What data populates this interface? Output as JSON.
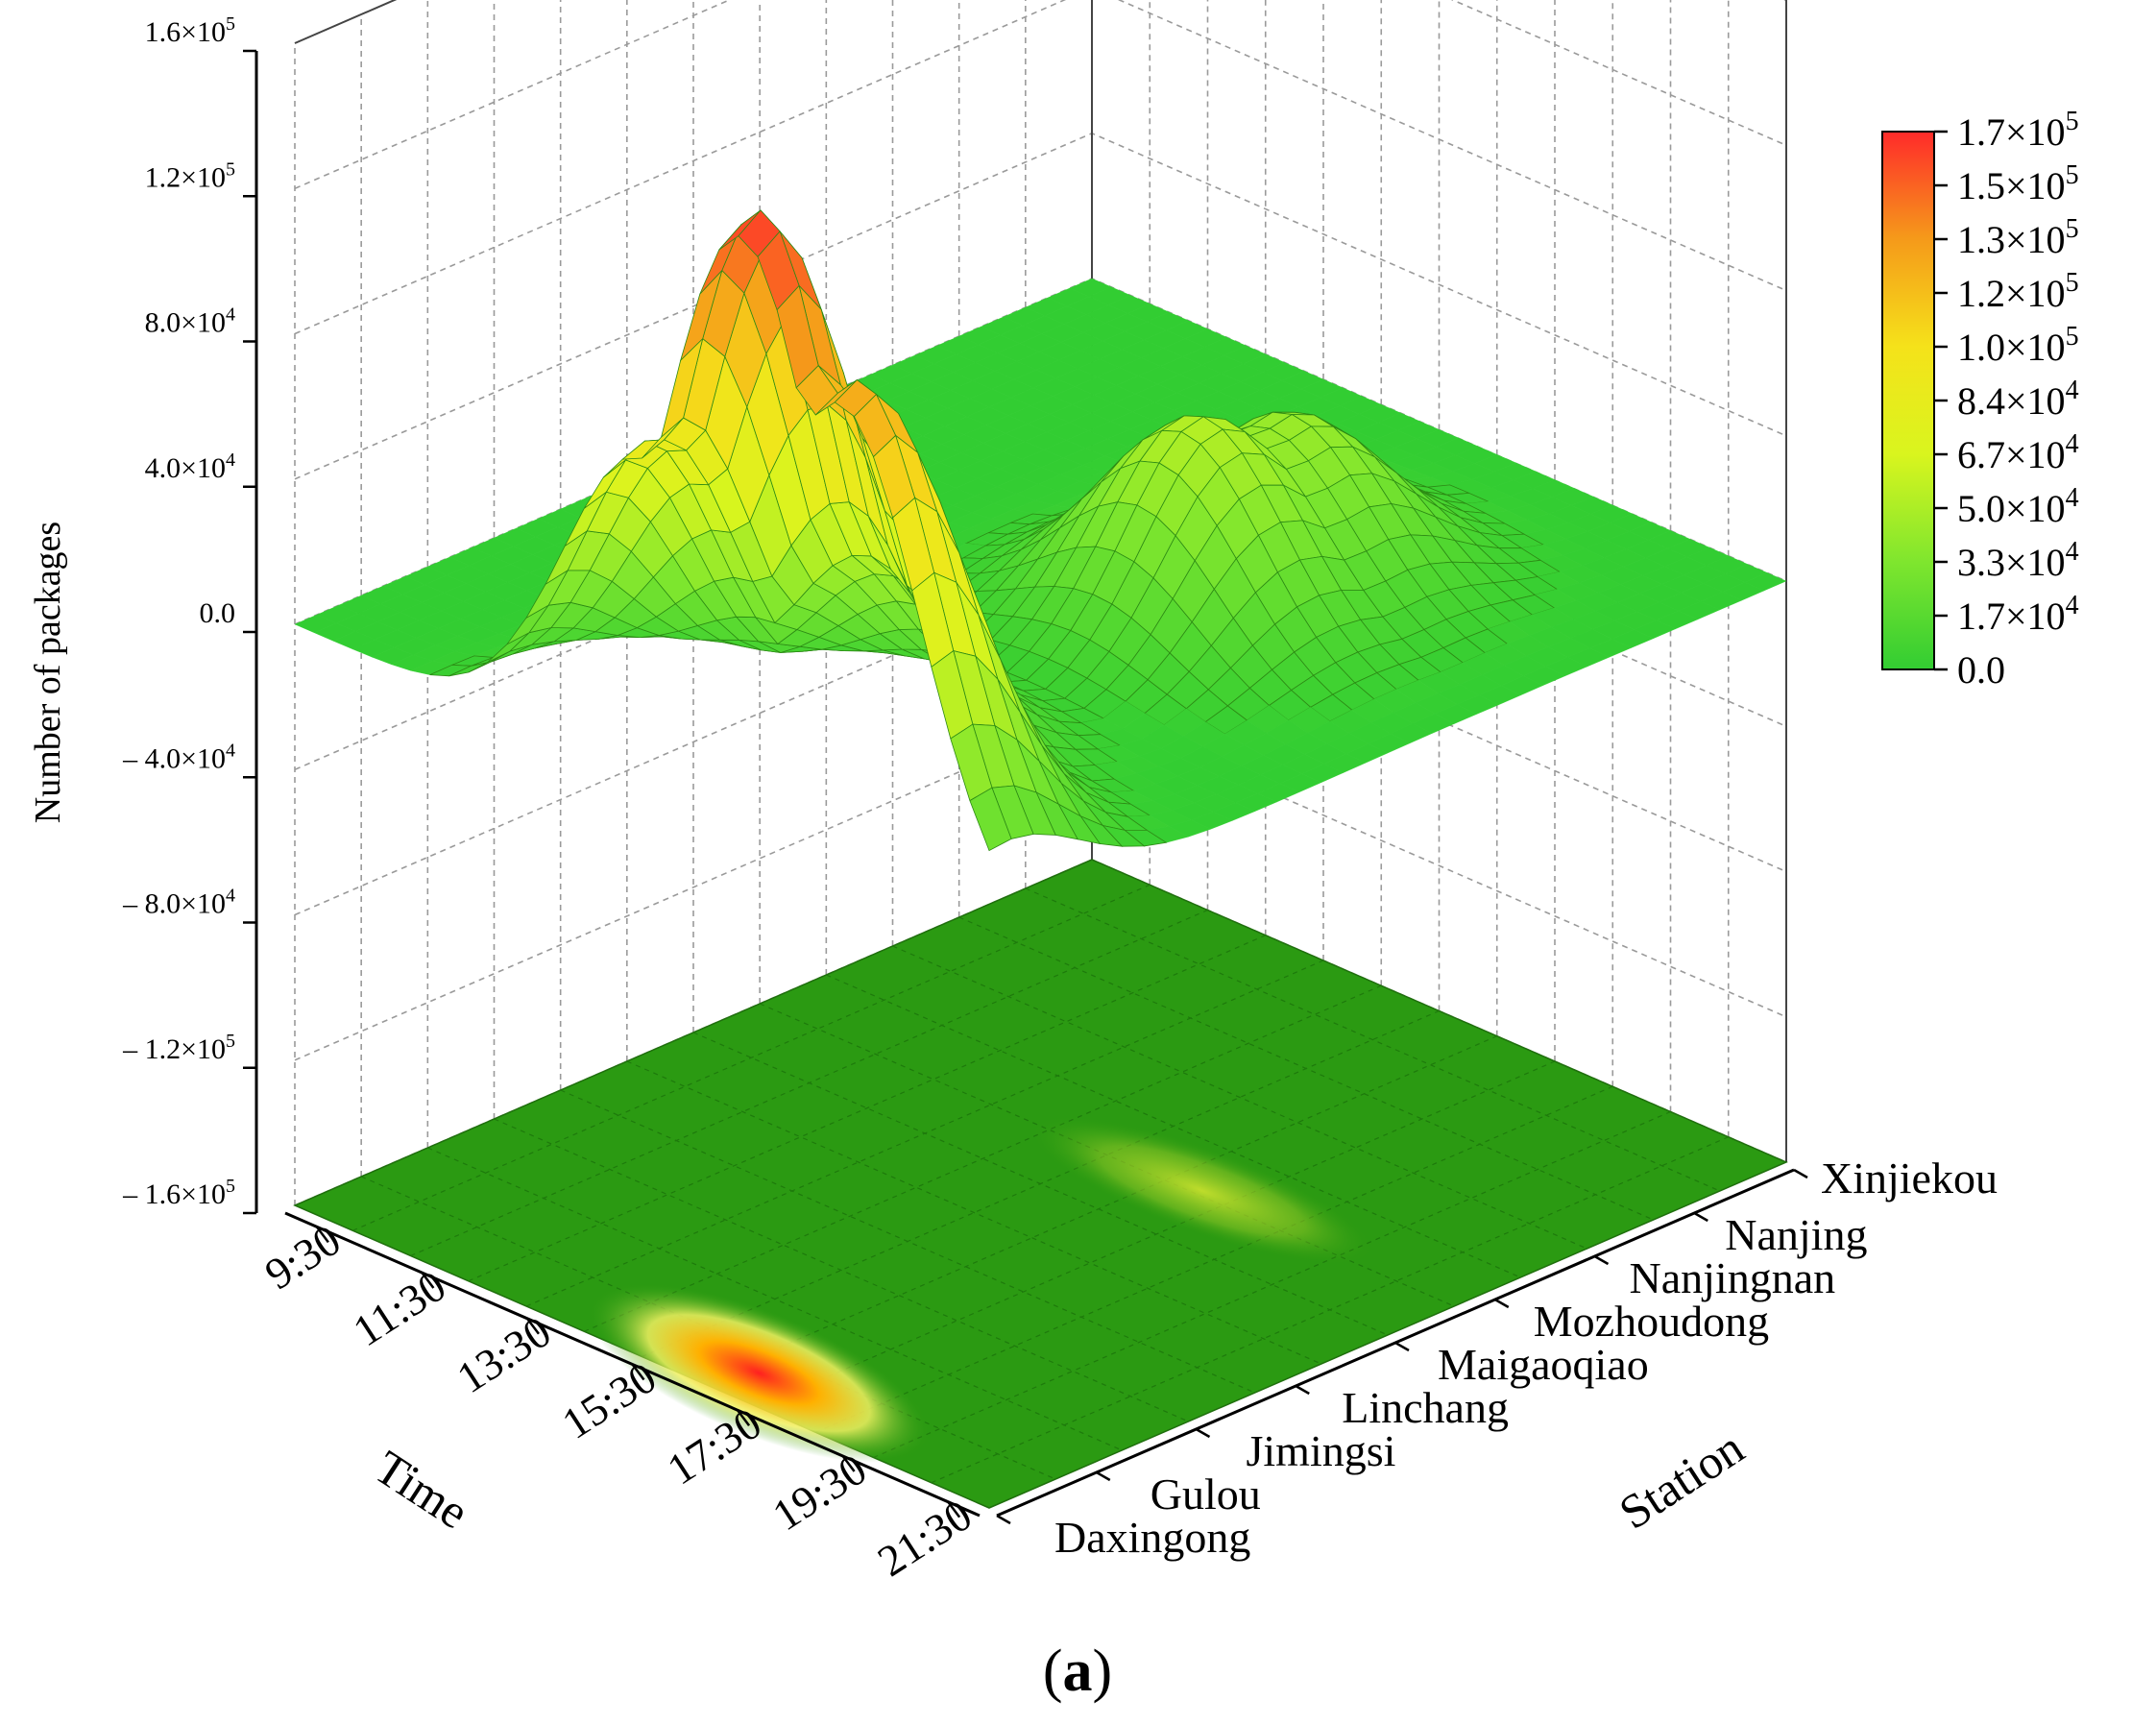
{
  "chart_data": {
    "type": "surface3d",
    "xlabel": "Time",
    "ylabel": "Station",
    "zlabel": "Number of packages",
    "panel_label": "a",
    "time_ticks": [
      "9:30",
      "11:30",
      "13:30",
      "15:30",
      "17:30",
      "19:30",
      "21:30"
    ],
    "station_ticks": [
      "Daxingong",
      "Gulou",
      "Jimingsi",
      "Linchang",
      "Maigaoqiao",
      "Mozhoudong",
      "Nanjingnan",
      "Nanjing",
      "Xinjiekou"
    ],
    "z_ticks": [
      {
        "value": 160000,
        "label": "1.6×10",
        "exp": "5",
        "neg": false
      },
      {
        "value": 120000,
        "label": "1.2×10",
        "exp": "5",
        "neg": false
      },
      {
        "value": 80000,
        "label": "8.0×10",
        "exp": "4",
        "neg": false
      },
      {
        "value": 40000,
        "label": "4.0×10",
        "exp": "4",
        "neg": false
      },
      {
        "value": 0,
        "label": "0.0",
        "exp": "",
        "neg": false
      },
      {
        "value": -40000,
        "label": "4.0×10",
        "exp": "4",
        "neg": true
      },
      {
        "value": -80000,
        "label": "8.0×10",
        "exp": "4",
        "neg": true
      },
      {
        "value": -120000,
        "label": "1.2×10",
        "exp": "5",
        "neg": true
      },
      {
        "value": -160000,
        "label": "1.6×10",
        "exp": "5",
        "neg": true
      }
    ],
    "zlim": [
      -160000,
      160000
    ],
    "colorbar": {
      "range": [
        0,
        170000
      ],
      "ticks": [
        {
          "label": "1.7×10",
          "exp": "5"
        },
        {
          "label": "1.5×10",
          "exp": "5"
        },
        {
          "label": "1.3×10",
          "exp": "5"
        },
        {
          "label": "1.2×10",
          "exp": "5"
        },
        {
          "label": "1.0×10",
          "exp": "5"
        },
        {
          "label": "8.4×10",
          "exp": "4"
        },
        {
          "label": "6.7×10",
          "exp": "4"
        },
        {
          "label": "5.0×10",
          "exp": "4"
        },
        {
          "label": "3.3×10",
          "exp": "4"
        },
        {
          "label": "1.7×10",
          "exp": "4"
        },
        {
          "label": "0.0",
          "exp": ""
        }
      ],
      "colors": [
        "#32cd32",
        "#7fe62e",
        "#d9f51e",
        "#f5e21a",
        "#f59a1a",
        "#ff2a2a"
      ]
    },
    "surface_peaks": [
      {
        "time": "17:30",
        "station": "Daxingong",
        "value": 165000
      },
      {
        "time": "19:30",
        "station": "Daxingong",
        "value": 130000
      },
      {
        "time": "15:30",
        "station": "Daxingong",
        "value": 90000
      },
      {
        "time": "17:30",
        "station": "Gulou",
        "value": 60000
      },
      {
        "time": "17:30",
        "station": "Mozhoudong",
        "value": 55000
      },
      {
        "time": "17:30",
        "station": "Nanjingnan",
        "value": 45000
      }
    ],
    "grid": true,
    "legend_position": "right"
  }
}
